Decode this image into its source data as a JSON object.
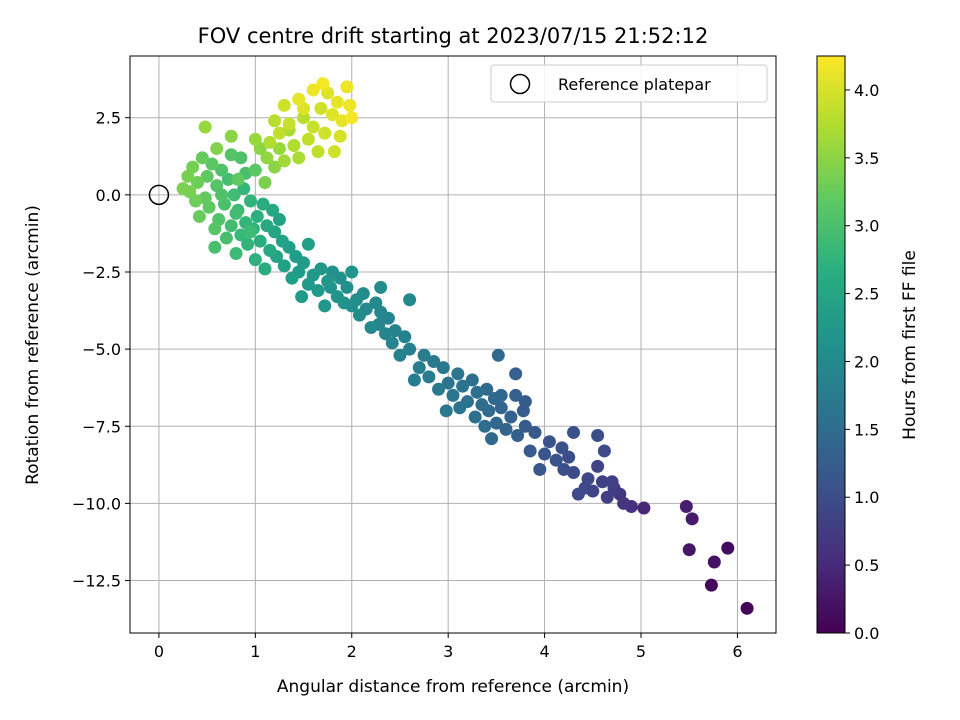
{
  "chart_data": {
    "type": "scatter",
    "title": "FOV centre drift starting at 2023/07/15 21:52:12",
    "xlabel": "Angular distance from reference (arcmin)",
    "ylabel": "Rotation from reference (arcmin)",
    "xlim": [
      -0.3,
      6.4
    ],
    "ylim": [
      -14.2,
      4.5
    ],
    "xticks": [
      0,
      1,
      2,
      3,
      4,
      5,
      6
    ],
    "xtick_labels": [
      "0",
      "1",
      "2",
      "3",
      "4",
      "5",
      "6"
    ],
    "yticks": [
      2.5,
      0.0,
      -2.5,
      -5.0,
      -7.5,
      -10.0,
      -12.5
    ],
    "ytick_labels": [
      "2.5",
      "0.0",
      "−2.5",
      "−5.0",
      "−7.5",
      "−10.0",
      "−12.5"
    ],
    "grid": true,
    "legend": {
      "position": "top-right",
      "entries": [
        {
          "label": "Reference platepar",
          "marker": "open-circle"
        }
      ]
    },
    "reference_point": {
      "x": 0.0,
      "y": 0.0
    },
    "colorbar": {
      "label": "Hours from first FF file",
      "colormap": "viridis",
      "range": [
        0.0,
        4.25
      ],
      "ticks": [
        0.0,
        0.5,
        1.0,
        1.5,
        2.0,
        2.5,
        3.0,
        3.5,
        4.0
      ],
      "tick_labels": [
        "0.0",
        "0.5",
        "1.0",
        "1.5",
        "2.0",
        "2.5",
        "3.0",
        "3.5",
        "4.0"
      ]
    },
    "points": [
      [
        6.1,
        -13.4,
        0.05
      ],
      [
        5.73,
        -12.65,
        0.1
      ],
      [
        5.9,
        -11.45,
        0.15
      ],
      [
        5.76,
        -11.9,
        0.2
      ],
      [
        5.5,
        -11.5,
        0.25
      ],
      [
        5.53,
        -10.5,
        0.3
      ],
      [
        5.47,
        -10.1,
        0.35
      ],
      [
        5.03,
        -10.15,
        0.45
      ],
      [
        4.9,
        -10.1,
        0.6
      ],
      [
        4.82,
        -10.0,
        0.65
      ],
      [
        4.78,
        -9.7,
        0.7
      ],
      [
        4.72,
        -9.5,
        0.75
      ],
      [
        4.65,
        -9.8,
        0.8
      ],
      [
        4.6,
        -9.3,
        0.82
      ],
      [
        4.55,
        -8.8,
        0.85
      ],
      [
        4.5,
        -9.6,
        0.88
      ],
      [
        4.45,
        -9.2,
        0.9
      ],
      [
        4.42,
        -9.5,
        0.92
      ],
      [
        4.35,
        -9.7,
        0.95
      ],
      [
        4.3,
        -9.0,
        0.98
      ],
      [
        4.25,
        -8.5,
        1.0
      ],
      [
        4.2,
        -8.9,
        1.03
      ],
      [
        4.18,
        -8.2,
        1.05
      ],
      [
        4.12,
        -8.6,
        1.08
      ],
      [
        4.05,
        -8.0,
        1.1
      ],
      [
        4.0,
        -8.4,
        1.12
      ],
      [
        3.95,
        -8.9,
        1.15
      ],
      [
        3.9,
        -7.7,
        1.18
      ],
      [
        4.55,
        -7.8,
        1.0
      ],
      [
        4.62,
        -8.3,
        0.95
      ],
      [
        4.3,
        -7.7,
        1.05
      ],
      [
        4.7,
        -9.3,
        0.8
      ],
      [
        3.85,
        -8.3,
        1.2
      ],
      [
        3.8,
        -7.5,
        1.22
      ],
      [
        3.78,
        -7.0,
        1.25
      ],
      [
        3.72,
        -7.8,
        1.28
      ],
      [
        3.7,
        -6.5,
        1.3
      ],
      [
        3.65,
        -7.2,
        1.32
      ],
      [
        3.6,
        -7.6,
        1.35
      ],
      [
        3.55,
        -6.9,
        1.38
      ],
      [
        3.5,
        -7.4,
        1.4
      ],
      [
        3.48,
        -6.6,
        1.42
      ],
      [
        3.45,
        -7.9,
        1.43
      ],
      [
        3.42,
        -7.0,
        1.45
      ],
      [
        3.4,
        -6.3,
        1.47
      ],
      [
        3.38,
        -7.5,
        1.5
      ],
      [
        3.35,
        -6.8,
        1.52
      ],
      [
        3.3,
        -6.4,
        1.53
      ],
      [
        3.28,
        -7.2,
        1.55
      ],
      [
        3.25,
        -6.0,
        1.57
      ],
      [
        3.2,
        -6.7,
        1.6
      ],
      [
        3.15,
        -6.2,
        1.62
      ],
      [
        3.12,
        -6.9,
        1.63
      ],
      [
        3.1,
        -5.8,
        1.65
      ],
      [
        3.05,
        -6.5,
        1.67
      ],
      [
        3.0,
        -6.1,
        1.68
      ],
      [
        2.98,
        -7.0,
        1.7
      ],
      [
        2.95,
        -5.6,
        1.72
      ],
      [
        2.9,
        -6.3,
        1.73
      ],
      [
        2.85,
        -5.4,
        1.75
      ],
      [
        2.8,
        -5.9,
        1.77
      ],
      [
        2.75,
        -5.2,
        1.78
      ],
      [
        2.7,
        -5.6,
        1.8
      ],
      [
        2.65,
        -6.0,
        1.82
      ],
      [
        3.7,
        -5.8,
        1.3
      ],
      [
        3.52,
        -5.2,
        1.45
      ],
      [
        3.55,
        -6.5,
        1.4
      ],
      [
        3.8,
        -6.7,
        1.2
      ],
      [
        2.6,
        -5.0,
        1.85
      ],
      [
        2.55,
        -4.6,
        1.87
      ],
      [
        2.5,
        -5.2,
        1.88
      ],
      [
        2.45,
        -4.4,
        1.9
      ],
      [
        2.42,
        -4.8,
        1.92
      ],
      [
        2.38,
        -4.0,
        1.93
      ],
      [
        2.35,
        -4.5,
        1.95
      ],
      [
        2.3,
        -3.8,
        1.97
      ],
      [
        2.28,
        -4.2,
        1.98
      ],
      [
        2.25,
        -3.5,
        2.0
      ],
      [
        2.2,
        -4.3,
        2.02
      ],
      [
        2.15,
        -3.7,
        2.03
      ],
      [
        2.12,
        -3.2,
        2.05
      ],
      [
        2.08,
        -3.9,
        2.07
      ],
      [
        2.05,
        -3.4,
        2.08
      ],
      [
        2.0,
        -3.6,
        2.1
      ],
      [
        1.95,
        -3.0,
        2.12
      ],
      [
        1.92,
        -3.5,
        2.13
      ],
      [
        1.88,
        -2.7,
        2.15
      ],
      [
        1.85,
        -3.3,
        2.17
      ],
      [
        1.8,
        -2.5,
        2.18
      ],
      [
        1.78,
        -3.0,
        2.2
      ],
      [
        1.75,
        -2.8,
        2.22
      ],
      [
        1.72,
        -3.6,
        2.23
      ],
      [
        1.68,
        -2.4,
        2.25
      ],
      [
        1.65,
        -3.1,
        2.27
      ],
      [
        1.6,
        -2.6,
        2.28
      ],
      [
        1.55,
        -2.9,
        2.3
      ],
      [
        1.5,
        -2.2,
        2.32
      ],
      [
        1.48,
        -3.3,
        2.33
      ],
      [
        1.45,
        -2.5,
        2.35
      ],
      [
        1.42,
        -2.0,
        2.37
      ],
      [
        1.38,
        -2.7,
        2.38
      ],
      [
        1.35,
        -1.7,
        2.4
      ],
      [
        1.3,
        -2.3,
        2.42
      ],
      [
        1.28,
        -1.5,
        2.43
      ],
      [
        2.6,
        -3.4,
        2.0
      ],
      [
        2.3,
        -3.0,
        2.05
      ],
      [
        2.0,
        -2.5,
        2.2
      ],
      [
        1.55,
        -1.6,
        2.4
      ],
      [
        1.25,
        -0.8,
        2.45
      ],
      [
        1.22,
        -2.0,
        2.47
      ],
      [
        1.2,
        -1.2,
        2.5
      ],
      [
        1.18,
        -0.5,
        2.52
      ],
      [
        1.15,
        -1.8,
        2.55
      ],
      [
        1.12,
        -1.0,
        2.57
      ],
      [
        1.1,
        -2.4,
        2.6
      ],
      [
        1.08,
        -0.3,
        2.62
      ],
      [
        1.05,
        -1.5,
        2.65
      ],
      [
        1.02,
        -0.7,
        2.67
      ],
      [
        1.0,
        -2.1,
        2.7
      ],
      [
        0.98,
        -1.1,
        2.72
      ],
      [
        0.95,
        -0.2,
        2.75
      ],
      [
        0.92,
        -1.6,
        2.77
      ],
      [
        0.9,
        -0.9,
        2.8
      ],
      [
        0.88,
        0.2,
        2.82
      ],
      [
        0.85,
        -1.3,
        2.85
      ],
      [
        0.82,
        -0.5,
        2.87
      ],
      [
        0.8,
        -1.9,
        2.9
      ],
      [
        0.78,
        0.0,
        2.92
      ],
      [
        0.75,
        -1.0,
        2.95
      ],
      [
        0.72,
        0.5,
        2.97
      ],
      [
        0.7,
        -1.4,
        3.0
      ],
      [
        0.68,
        -0.3,
        3.02
      ],
      [
        0.65,
        0.8,
        3.05
      ],
      [
        0.62,
        -0.8,
        3.07
      ],
      [
        0.6,
        0.3,
        3.1
      ],
      [
        0.58,
        -1.1,
        3.12
      ],
      [
        0.55,
        1.0,
        3.15
      ],
      [
        0.52,
        -0.4,
        3.17
      ],
      [
        0.5,
        0.6,
        3.2
      ],
      [
        0.48,
        -0.1,
        3.22
      ],
      [
        0.45,
        1.2,
        3.25
      ],
      [
        0.42,
        -0.7,
        3.27
      ],
      [
        0.4,
        0.4,
        3.3
      ],
      [
        0.38,
        -0.2,
        3.32
      ],
      [
        0.35,
        0.9,
        3.35
      ],
      [
        0.32,
        0.1,
        3.37
      ],
      [
        0.3,
        0.6,
        3.38
      ],
      [
        0.25,
        0.2,
        3.4
      ],
      [
        0.58,
        -1.7,
        3.0
      ],
      [
        0.95,
        -1.2,
        2.9
      ],
      [
        0.8,
        -0.6,
        2.95
      ],
      [
        0.65,
        0.0,
        3.05
      ],
      [
        0.75,
        1.3,
        3.1
      ],
      [
        0.85,
        1.2,
        3.05
      ],
      [
        0.9,
        0.7,
        3.0
      ],
      [
        1.0,
        0.8,
        3.15
      ],
      [
        0.48,
        2.2,
        3.6
      ],
      [
        0.75,
        1.9,
        3.5
      ],
      [
        0.6,
        1.5,
        3.45
      ],
      [
        0.82,
        0.5,
        3.2
      ],
      [
        1.05,
        1.5,
        3.5
      ],
      [
        1.12,
        1.2,
        3.55
      ],
      [
        1.2,
        0.9,
        3.5
      ],
      [
        1.25,
        1.5,
        3.6
      ],
      [
        1.3,
        1.1,
        3.65
      ],
      [
        1.35,
        2.1,
        3.7
      ],
      [
        1.4,
        1.6,
        3.75
      ],
      [
        1.45,
        1.2,
        3.7
      ],
      [
        1.5,
        2.5,
        3.8
      ],
      [
        1.55,
        1.8,
        3.85
      ],
      [
        1.6,
        2.2,
        3.9
      ],
      [
        1.65,
        1.4,
        3.85
      ],
      [
        1.68,
        2.8,
        3.95
      ],
      [
        1.72,
        2.0,
        3.95
      ],
      [
        1.75,
        3.3,
        4.05
      ],
      [
        1.8,
        2.6,
        4.05
      ],
      [
        1.85,
        3.0,
        4.1
      ],
      [
        1.9,
        2.4,
        4.1
      ],
      [
        1.95,
        3.5,
        4.15
      ],
      [
        1.98,
        2.9,
        4.15
      ],
      [
        2.0,
        2.5,
        4.2
      ],
      [
        1.7,
        3.6,
        4.2
      ],
      [
        1.6,
        3.4,
        4.15
      ],
      [
        1.5,
        2.8,
        4.05
      ],
      [
        1.35,
        2.3,
        3.9
      ],
      [
        1.3,
        2.9,
        3.95
      ],
      [
        1.25,
        2.0,
        3.85
      ],
      [
        1.15,
        1.7,
        3.75
      ],
      [
        1.1,
        0.4,
        3.4
      ],
      [
        1.0,
        1.8,
        3.6
      ],
      [
        1.88,
        1.9,
        4.0
      ],
      [
        1.82,
        1.4,
        3.95
      ],
      [
        1.45,
        3.1,
        4.1
      ],
      [
        1.2,
        2.4,
        3.8
      ]
    ]
  }
}
